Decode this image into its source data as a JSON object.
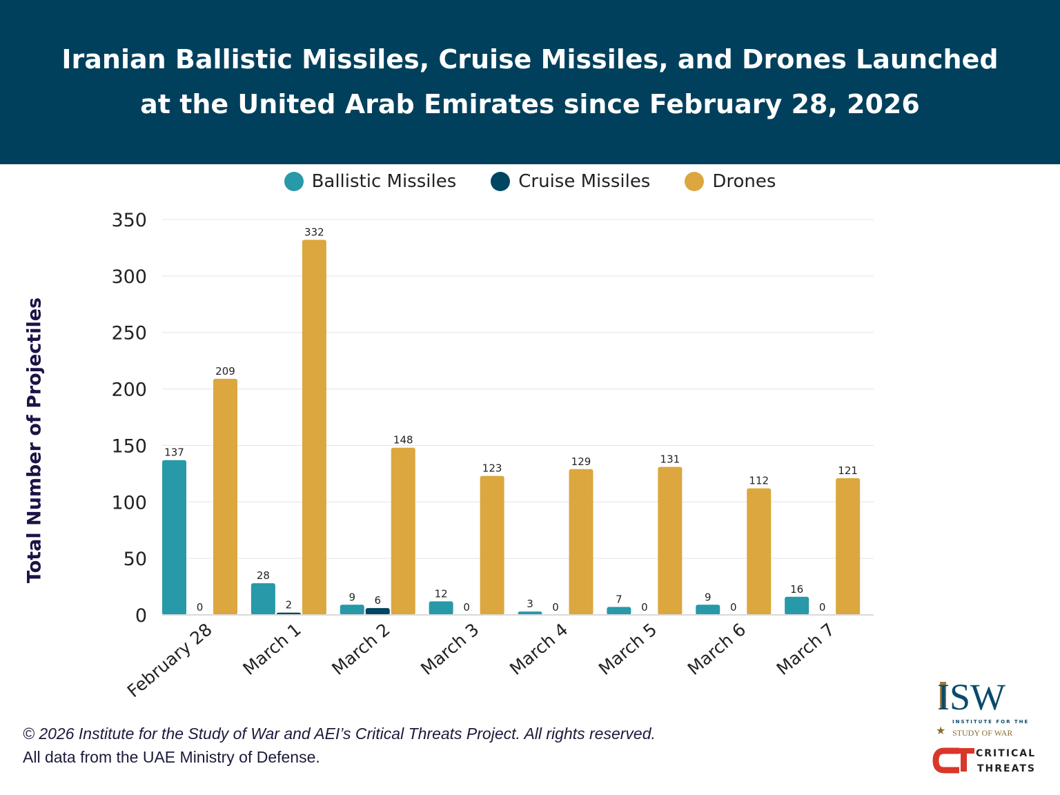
{
  "header": {
    "title_line1": "Iranian Ballistic Missiles, Cruise Missiles, and Drones Launched",
    "title_line2": "at the United Arab Emirates since February 28, 2026"
  },
  "chart_data": {
    "type": "bar",
    "title": "Iranian Ballistic Missiles, Cruise Missiles, and Drones Launched at the United Arab Emirates since February 28, 2026",
    "ylabel": "Total Number of Projectiles",
    "xlabel": "",
    "ylim": [
      0,
      350
    ],
    "yticks": [
      0,
      50,
      100,
      150,
      200,
      250,
      300,
      350
    ],
    "grid": true,
    "legend_placement": "top",
    "categories": [
      "February 28",
      "March 1",
      "March 2",
      "March 3",
      "March 4",
      "March 5",
      "March 6",
      "March 7"
    ],
    "series": [
      {
        "name": "Ballistic Missiles",
        "color": "#2799a8",
        "values": [
          137,
          28,
          9,
          12,
          3,
          7,
          9,
          16
        ]
      },
      {
        "name": "Cruise Missiles",
        "color": "#004561",
        "values": [
          0,
          2,
          6,
          0,
          0,
          0,
          0,
          0
        ]
      },
      {
        "name": "Drones",
        "color": "#dba73e",
        "values": [
          209,
          332,
          148,
          123,
          129,
          131,
          112,
          121
        ]
      }
    ]
  },
  "footer": {
    "copyright": "© 2026 Institute for the Study of War and AEI’s Critical Threats Project. All rights reserved.",
    "source": "All data from the UAE Ministry of Defense."
  },
  "logos": {
    "isw": "ISW",
    "isw_sub1": "INSTITUTE FOR THE",
    "isw_sub2": "STUDY OF WAR",
    "ct1": "CRITICAL",
    "ct2": "THREATS"
  },
  "colors": {
    "header_bg": "#00405c"
  }
}
